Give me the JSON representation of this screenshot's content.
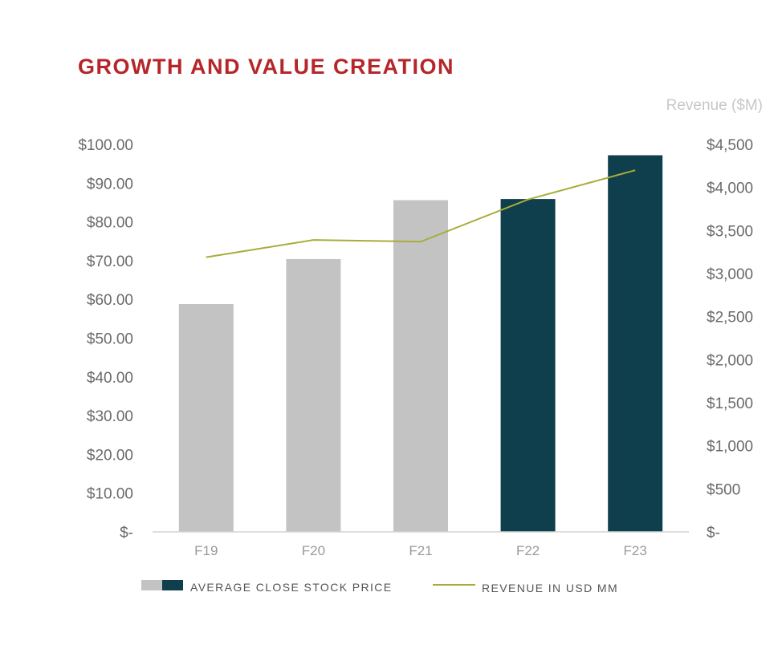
{
  "chart_data": {
    "type": "bar",
    "title": "GROWTH AND VALUE CREATION",
    "categories": [
      "F19",
      "F20",
      "F21",
      "F22",
      "F23"
    ],
    "series": [
      {
        "name": "AVERAGE CLOSE STOCK PRICE",
        "type": "bar",
        "axis": "left",
        "values": [
          58.8,
          70.4,
          85.6,
          85.9,
          97.2
        ],
        "colors": [
          "#c3c3c3",
          "#c3c3c3",
          "#c3c3c3",
          "#0f3e4d",
          "#0f3e4d"
        ]
      },
      {
        "name": "REVENUE IN USD MM",
        "type": "line",
        "axis": "right",
        "values": [
          3190,
          3390,
          3370,
          3860,
          4200
        ],
        "color": "#a8ad3a"
      }
    ],
    "y_left": {
      "ylim": [
        0,
        100
      ],
      "tick_labels": [
        "$-",
        "$10.00",
        "$20.00",
        "$30.00",
        "$40.00",
        "$50.00",
        "$60.00",
        "$70.00",
        "$80.00",
        "$90.00",
        "$100.00"
      ],
      "tick_values": [
        0,
        10,
        20,
        30,
        40,
        50,
        60,
        70,
        80,
        90,
        100
      ]
    },
    "y_right": {
      "label": "Revenue ($M)",
      "ylim": [
        0,
        4500
      ],
      "tick_labels": [
        "$-",
        "$500",
        "$1,000",
        "$1,500",
        "$2,000",
        "$2,500",
        "$3,000",
        "$3,500",
        "$4,000",
        "$4,500"
      ],
      "tick_values": [
        0,
        500,
        1000,
        1500,
        2000,
        2500,
        3000,
        3500,
        4000,
        4500
      ]
    },
    "grid": false,
    "legend_position": "bottom",
    "legend_swatch_colors": [
      "#c3c3c3",
      "#0f3e4d"
    ]
  }
}
